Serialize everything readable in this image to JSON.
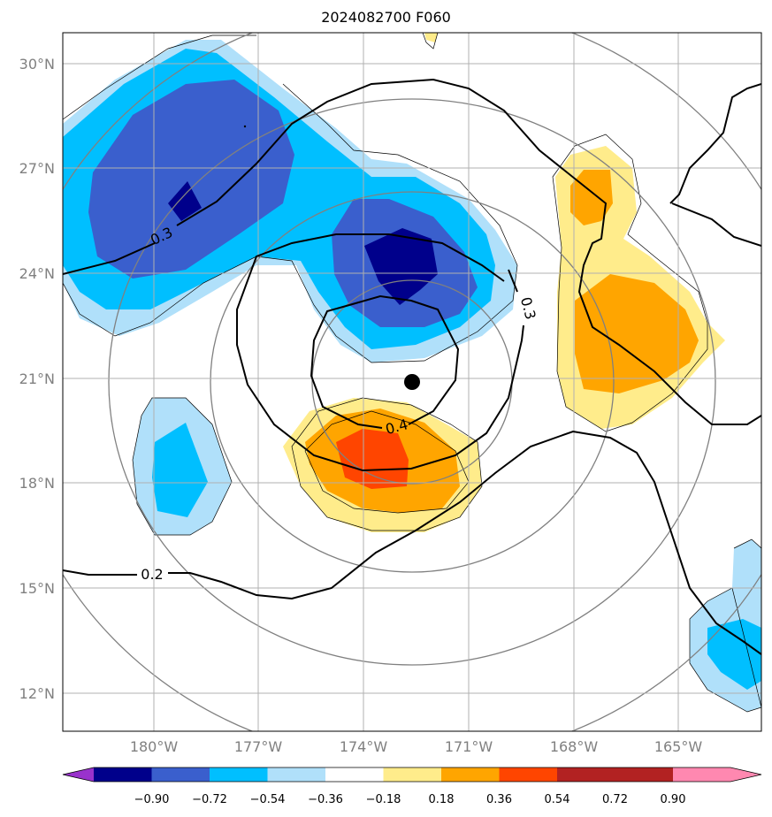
{
  "title": "2024082700 F060",
  "lat_labels": [
    "30°N",
    "27°N",
    "24°N",
    "21°N",
    "18°N",
    "15°N",
    "12°N"
  ],
  "lon_labels": [
    "180°W",
    "177°W",
    "174°W",
    "171°W",
    "168°W",
    "165°W"
  ],
  "contour_labels": [
    "0.3",
    "0.3",
    "0.4",
    "0.2"
  ],
  "colorbar": {
    "ticks": [
      "−0.90",
      "−0.72",
      "−0.54",
      "−0.36",
      "−0.18",
      "0.18",
      "0.36",
      "0.54",
      "0.72",
      "0.90"
    ],
    "colors": [
      "#9932cc",
      "#00008b",
      "#3a5fcd",
      "#00bfff",
      "#b0e0fa",
      "#ffffff",
      "#ffec8b",
      "#ffa500",
      "#ff4500",
      "#b22222",
      "#ff88b0"
    ]
  },
  "storm_center": {
    "lat": 20.9,
    "lon": -172.4
  }
}
